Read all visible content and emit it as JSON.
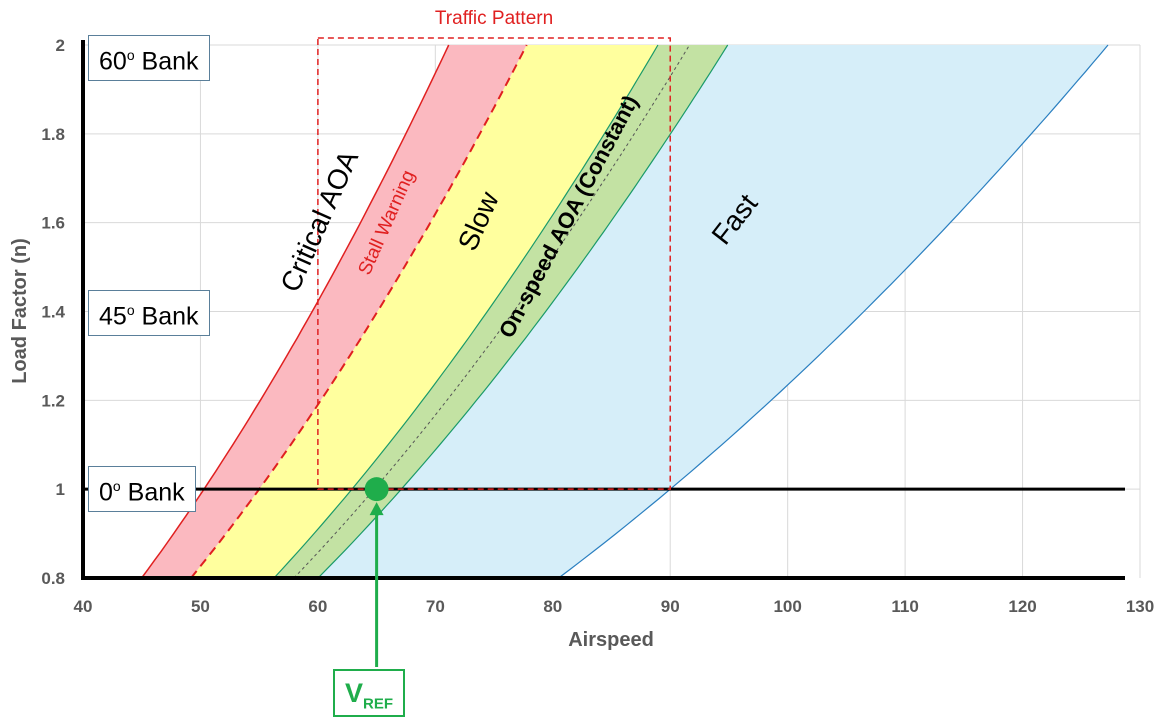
{
  "chart_data": {
    "type": "area",
    "title": "",
    "xlabel": "Airspeed",
    "ylabel": "Load Factor (n)",
    "xlim": [
      40,
      130
    ],
    "ylim": [
      0.8,
      2
    ],
    "x_ticks": [
      40,
      50,
      60,
      70,
      80,
      90,
      100,
      110,
      120,
      130
    ],
    "y_ticks": [
      0.8,
      1,
      1.2,
      1.4,
      1.6,
      1.8,
      2
    ],
    "x_tick_labels": [
      "40",
      "50",
      "60",
      "70",
      "80",
      "90",
      "100",
      "110",
      "120",
      "130"
    ],
    "y_tick_labels": [
      "0.8",
      "1",
      "1.2",
      "1.4",
      "1.6",
      "1.8",
      "2"
    ],
    "grid": true,
    "reference_speeds_at_1g": {
      "critical_aoa": 50.3,
      "stall_warning": 55.0,
      "slow_edge": 62.9,
      "on_speed_line": 64.8,
      "on_speed_edge": 67.1,
      "fast_edge": 90.0
    },
    "regions": [
      {
        "label": "Critical AOA",
        "color": "#fbb9c0",
        "from": "critical_aoa",
        "to": "stall_warning"
      },
      {
        "label": "Slow",
        "color": "#ffff9e",
        "from": "stall_warning",
        "to": "slow_edge"
      },
      {
        "label": "On-speed AOA (Constant)",
        "color": "#c3e2a3",
        "from": "slow_edge",
        "to": "on_speed_edge"
      },
      {
        "label": "Fast",
        "color": "#d6eef9",
        "from": "on_speed_edge",
        "to": "fast_edge"
      }
    ],
    "stall_warning_label": "Stall Warning",
    "traffic_pattern": {
      "label": "Traffic Pattern",
      "x": [
        60,
        90
      ],
      "y": [
        1,
        2
      ],
      "color": "#e02020"
    },
    "vref_point": {
      "x": 65,
      "y": 1,
      "label_main": "V",
      "label_sub": "REF",
      "color": "#1fad4b"
    },
    "bank_labels": [
      {
        "value": "60",
        "unit": "o",
        "suffix": " Bank",
        "n": 2
      },
      {
        "value": "45",
        "unit": "o",
        "suffix": " Bank",
        "n": 1.4
      },
      {
        "value": "0",
        "unit": "o",
        "suffix": " Bank",
        "n": 1
      }
    ]
  }
}
